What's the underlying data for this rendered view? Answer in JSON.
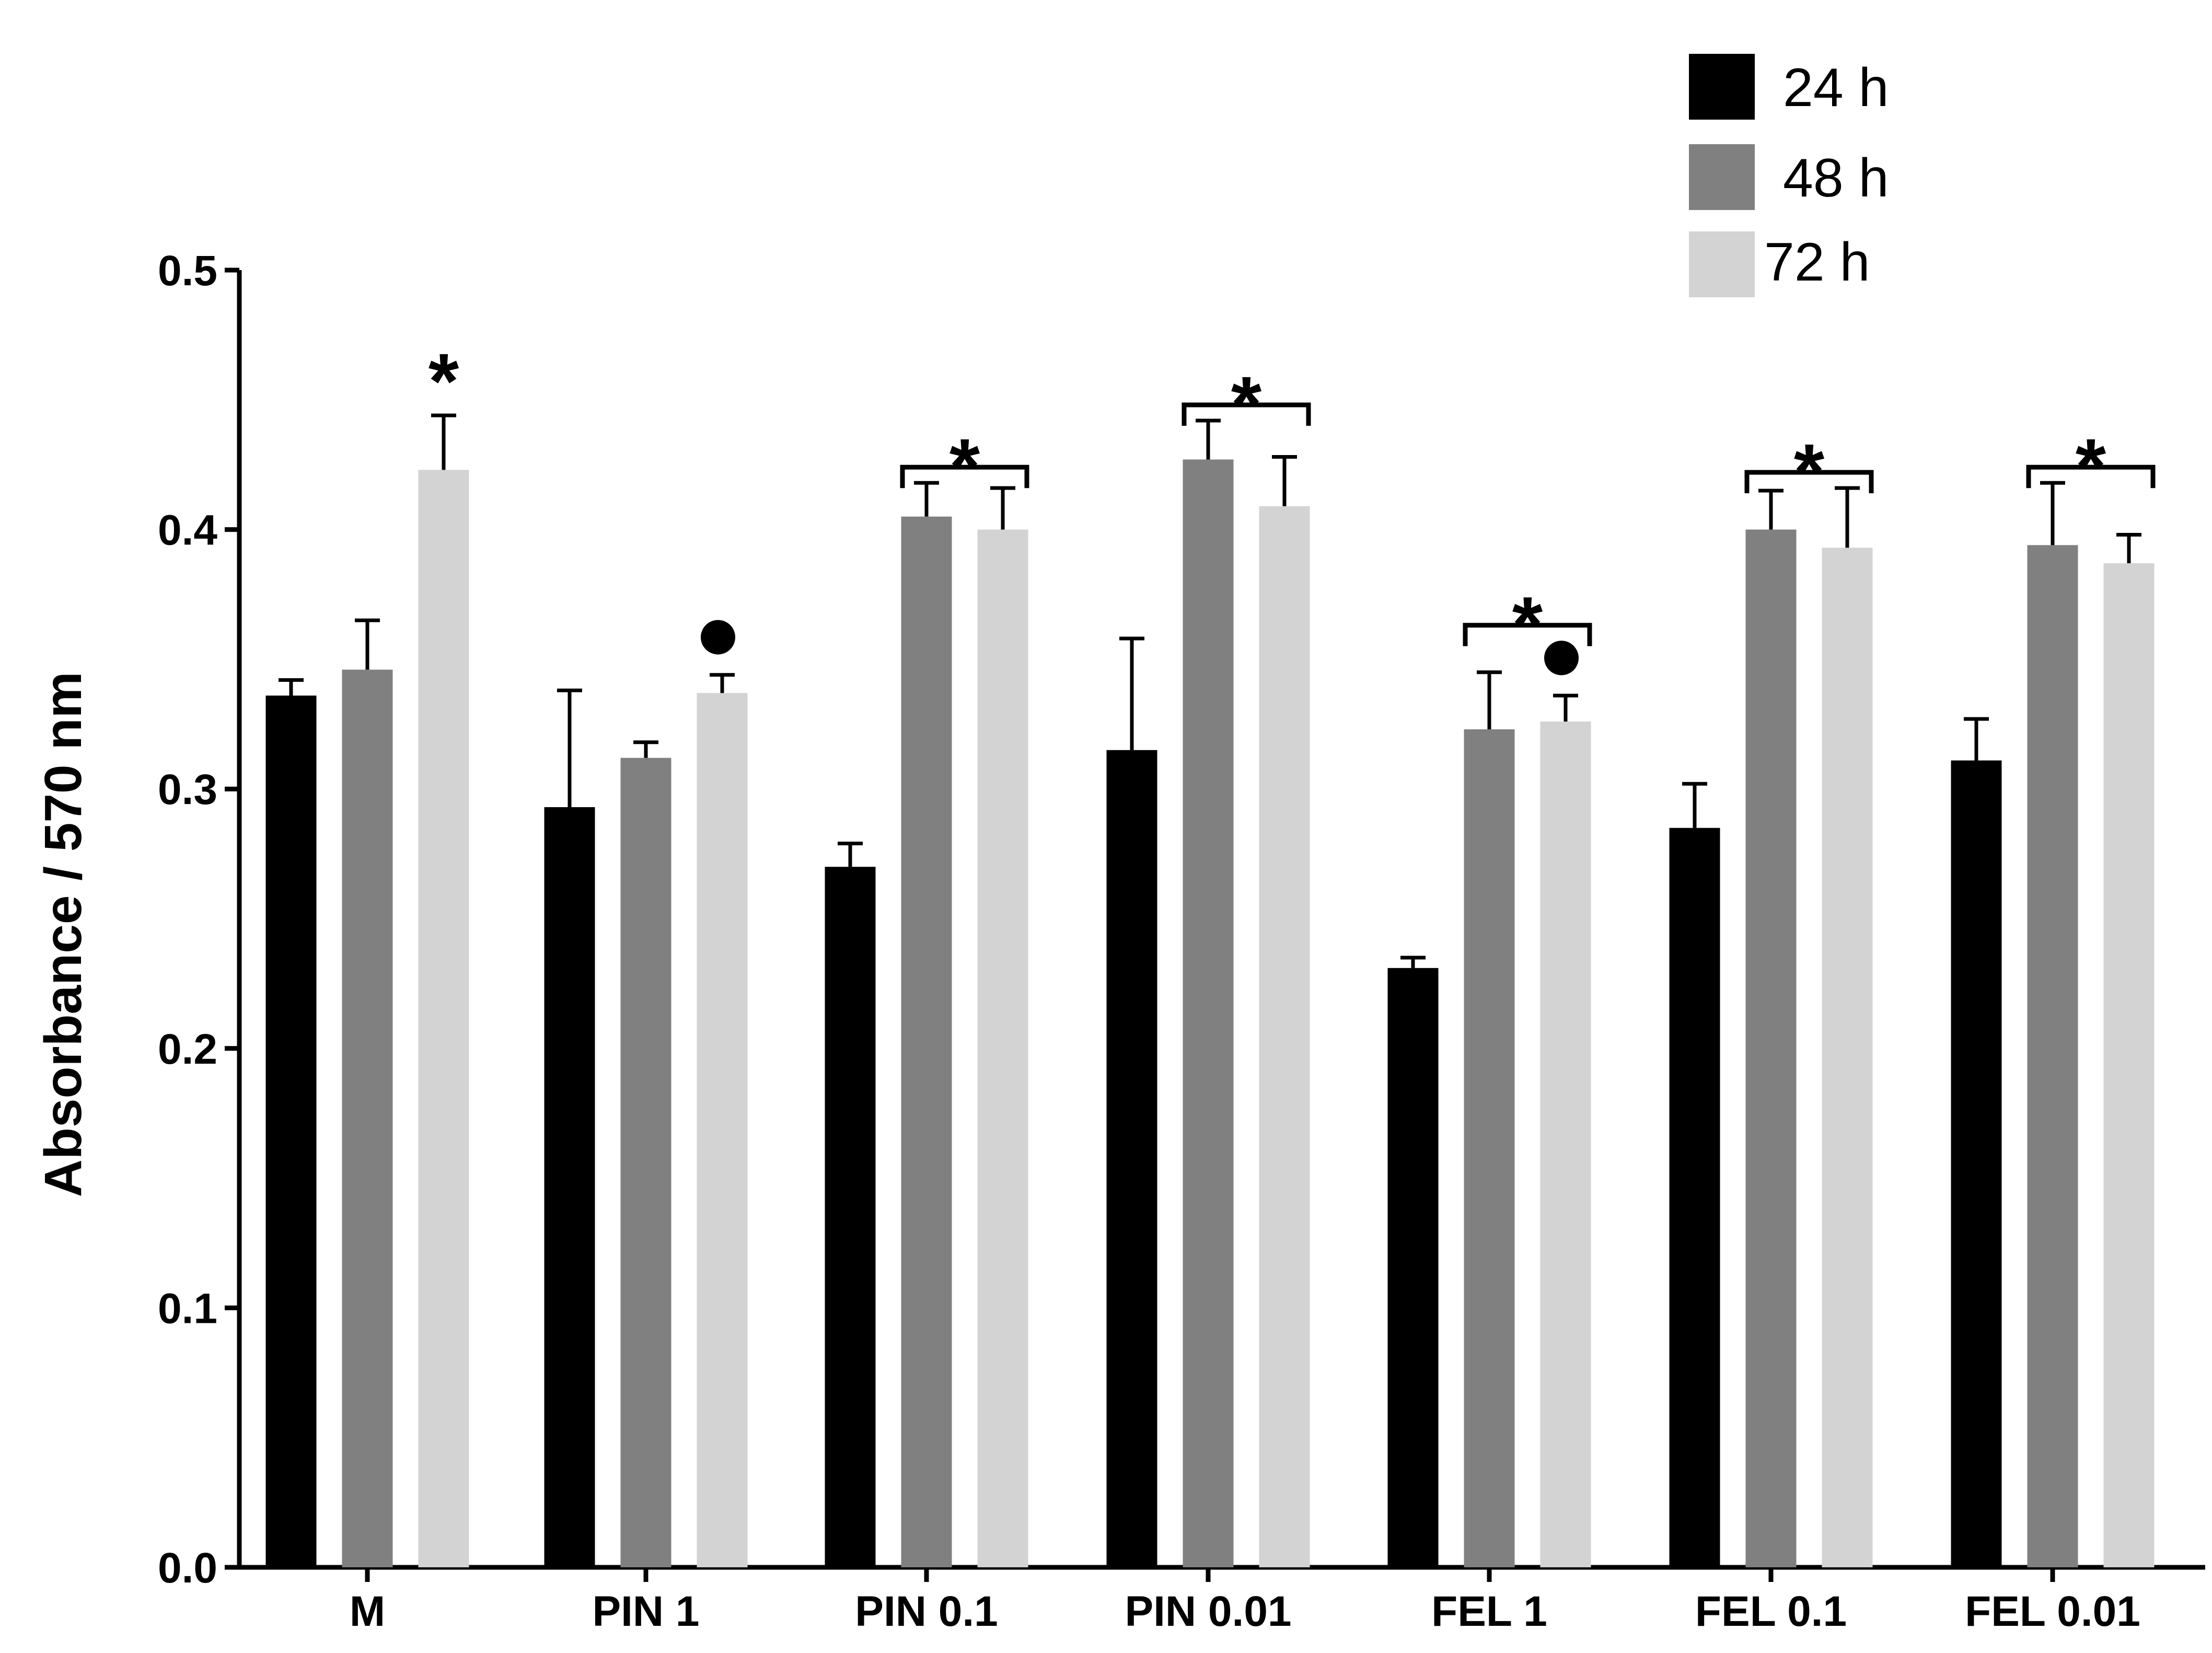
{
  "chart_data": {
    "type": "bar",
    "title": "",
    "xlabel": "",
    "ylabel": "Absorbance / 570 nm",
    "ylim": [
      0,
      0.5
    ],
    "yticks": [
      "0.0",
      "0.1",
      "0.2",
      "0.3",
      "0.4",
      "0.5"
    ],
    "ytick_values": [
      0,
      0.1,
      0.2,
      0.3,
      0.4,
      0.5
    ],
    "grid": false,
    "legend_position": "top-right",
    "categories": [
      "M",
      "PIN 1",
      "PIN 0.1",
      "PIN 0.01",
      "FEL 1",
      "FEL 0.1",
      "FEL 0.01"
    ],
    "series": [
      {
        "name": "24 h",
        "color": "#000000",
        "values": [
          0.336,
          0.293,
          0.27,
          0.315,
          0.231,
          0.285,
          0.311
        ],
        "errors": [
          0.006,
          0.045,
          0.009,
          0.043,
          0.004,
          0.017,
          0.016
        ]
      },
      {
        "name": "48 h",
        "color": "#808080",
        "values": [
          0.346,
          0.312,
          0.405,
          0.427,
          0.323,
          0.4,
          0.394
        ],
        "errors": [
          0.019,
          0.006,
          0.013,
          0.015,
          0.022,
          0.015,
          0.024
        ]
      },
      {
        "name": "72 h",
        "color": "#d3d3d3",
        "values": [
          0.423,
          0.337,
          0.4,
          0.409,
          0.326,
          0.393,
          0.387
        ],
        "errors": [
          0.021,
          0.007,
          0.016,
          0.019,
          0.01,
          0.023,
          0.011
        ]
      }
    ],
    "annotations": [
      {
        "category": "M",
        "type": "star",
        "text": "*",
        "series": [
          "72 h"
        ]
      },
      {
        "category": "PIN 1",
        "type": "dot",
        "text": "●",
        "series": [
          "72 h"
        ]
      },
      {
        "category": "PIN 0.1",
        "type": "bracket-star",
        "text": "*",
        "series": [
          "48 h",
          "72 h"
        ]
      },
      {
        "category": "PIN 0.01",
        "type": "bracket-star",
        "text": "*",
        "series": [
          "48 h",
          "72 h"
        ]
      },
      {
        "category": "FEL 1",
        "type": "bracket-star",
        "text": "*",
        "series": [
          "48 h",
          "72 h"
        ]
      },
      {
        "category": "FEL 1",
        "type": "dot",
        "text": "●",
        "series": [
          "72 h"
        ]
      },
      {
        "category": "FEL 0.1",
        "type": "bracket-star",
        "text": "*",
        "series": [
          "48 h",
          "72 h"
        ]
      },
      {
        "category": "FEL 0.01",
        "type": "bracket-star",
        "text": "*",
        "series": [
          "48 h",
          "72 h"
        ]
      }
    ]
  }
}
